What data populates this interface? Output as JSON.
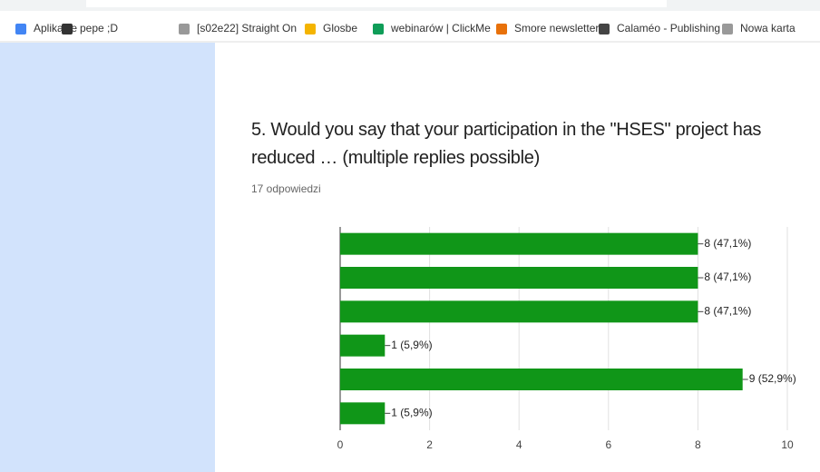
{
  "bookmarks": [
    "Aplikacje",
    "pepe ;D",
    "[s02e22] Straight On",
    "Glosbe",
    "webinarów | ClickMe",
    "Smore newsletter",
    "Calaméo - Publishing",
    "Nowa karta"
  ],
  "chart_data": {
    "type": "bar",
    "orientation": "horizontal",
    "title": "5. Would you say that your participation in the \"HSES\" project has reduced … (multiple replies possible)",
    "subtitle": "17 odpowiedzi",
    "categories": [
      null,
      null,
      null,
      null,
      null,
      null
    ],
    "values": [
      8,
      8,
      8,
      1,
      9,
      1
    ],
    "value_labels": [
      "8 (47,1%)",
      "8 (47,1%)",
      "8 (47,1%)",
      "1 (5,9%)",
      "9 (52,9%)",
      "1 (5,9%)"
    ],
    "color": "#109618",
    "xlim": [
      0,
      10
    ],
    "xticks": [
      0,
      2,
      4,
      6,
      8,
      10
    ],
    "grid": true
  }
}
